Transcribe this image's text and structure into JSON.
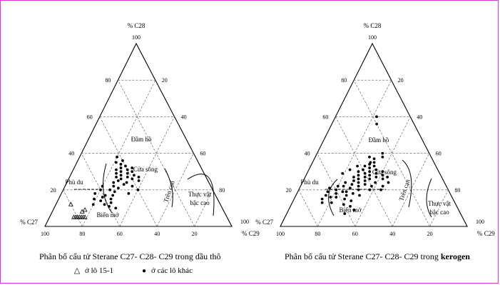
{
  "legend": {
    "triangle_symbol": "△",
    "triangle_label": "ở lô 15-1",
    "dot_symbol": "●",
    "dot_label": "ở các lô khác"
  },
  "chart_data": [
    {
      "type": "scatter",
      "subtype": "ternary",
      "caption_prefix": "Phân bố cấu tử Sterane",
      "caption_formula": "C27- C28- C29",
      "caption_suffix": "trong",
      "caption_material": "dầu thô",
      "axes": {
        "top": {
          "label": "% C28",
          "max": "100",
          "ticks": [
            "20",
            "40",
            "60",
            "80"
          ]
        },
        "left_side_ticks": [
          "20",
          "40",
          "60",
          "80"
        ],
        "right_side_ticks": [
          "20",
          "40",
          "60",
          "80"
        ],
        "bottom_ticks": [
          "100",
          "80",
          "60",
          "40",
          "20"
        ],
        "bottom_left": {
          "label": "% C27",
          "max": "100"
        },
        "bottom_right": {
          "label": "% C29",
          "max": "100"
        }
      },
      "regions": [
        "Phù du",
        "Đầm hồ",
        "Cửa sông",
        "Trên cạn",
        "Thực vật bậc cao",
        "Biển mở"
      ],
      "series": [
        {
          "marker": "triangle",
          "points": [
            [
              5,
              82,
              13
            ],
            [
              5,
              81,
              14
            ],
            [
              5,
              80,
              15
            ],
            [
              5,
              79,
              16
            ],
            [
              5,
              78,
              17
            ],
            [
              5,
              77,
              18
            ],
            [
              5,
              76,
              19
            ],
            [
              8,
              76,
              16
            ],
            [
              9,
              74,
              17
            ],
            [
              12,
              80,
              8
            ]
          ]
        },
        {
          "marker": "dot",
          "points": [
            [
              12,
              68,
              20
            ],
            [
              15,
              66,
              19
            ],
            [
              18,
              64,
              18
            ],
            [
              12,
              62,
              26
            ],
            [
              14,
              63,
              23
            ],
            [
              16,
              61,
              23
            ],
            [
              17,
              59,
              24
            ],
            [
              20,
              60,
              20
            ],
            [
              22,
              58,
              20
            ],
            [
              11,
              60,
              29
            ],
            [
              13,
              58,
              29
            ],
            [
              15,
              57,
              28
            ],
            [
              10,
              57,
              33
            ],
            [
              17,
              55,
              28
            ],
            [
              20,
              55,
              25
            ],
            [
              19,
              53,
              28
            ],
            [
              22,
              52,
              26
            ],
            [
              24,
              51,
              25
            ],
            [
              21,
              50,
              29
            ],
            [
              25,
              48,
              27
            ],
            [
              27,
              48,
              25
            ],
            [
              29,
              47,
              24
            ],
            [
              31,
              46,
              23
            ],
            [
              26,
              46,
              28
            ],
            [
              28,
              45,
              27
            ],
            [
              30,
              44,
              26
            ],
            [
              32,
              43,
              25
            ],
            [
              24,
              44,
              32
            ],
            [
              27,
              42,
              31
            ],
            [
              29,
              41,
              30
            ],
            [
              31,
              40,
              29
            ],
            [
              33,
              40,
              27
            ],
            [
              26,
              40,
              34
            ],
            [
              34,
              42,
              24
            ],
            [
              35,
              44,
              21
            ],
            [
              22,
              42,
              36
            ],
            [
              18,
              46,
              36
            ],
            [
              28,
              38,
              34
            ],
            [
              30,
              38,
              32
            ],
            [
              32,
              37,
              31
            ],
            [
              36,
              40,
              24
            ],
            [
              38,
              42,
              20
            ],
            [
              25,
              37,
              38
            ],
            [
              27,
              36,
              37
            ],
            [
              20,
              40,
              40
            ],
            [
              23,
              46,
              31
            ]
          ]
        }
      ]
    },
    {
      "type": "scatter",
      "subtype": "ternary",
      "caption_prefix": "Phân bố cấu tử Sterane",
      "caption_formula": "C27- C28- C29",
      "caption_suffix": "trong",
      "caption_material": "kerogen",
      "axes": {
        "top": {
          "label": "% C28",
          "max": "100",
          "ticks": [
            "20",
            "40",
            "60",
            "80"
          ]
        },
        "left_side_ticks": [
          "20",
          "40",
          "60",
          "80"
        ],
        "right_side_ticks": [
          "20",
          "40",
          "60",
          "80"
        ],
        "bottom_ticks": [
          "100",
          "80",
          "60",
          "40",
          "20"
        ],
        "bottom_left": {
          "label": "% C27",
          "max": "100"
        },
        "bottom_right": {
          "label": "% C29",
          "max": "100"
        }
      },
      "regions": [
        "Phù du",
        "Đầm hồ",
        "Cửa sông",
        "Trên cạn",
        "Thực vật bậc cao",
        "Biển mở"
      ],
      "series": [
        {
          "marker": "dot",
          "points": [
            [
              60,
              18,
              22
            ],
            [
              56,
              20,
              24
            ],
            [
              40,
              25,
              35
            ],
            [
              38,
              26,
              36
            ],
            [
              15,
              70,
              15
            ],
            [
              17,
              67,
              16
            ],
            [
              19,
              65,
              16
            ],
            [
              21,
              63,
              16
            ],
            [
              13,
              66,
              21
            ],
            [
              16,
              62,
              22
            ],
            [
              18,
              61,
              21
            ],
            [
              20,
              60,
              20
            ],
            [
              22,
              58,
              20
            ],
            [
              12,
              60,
              28
            ],
            [
              15,
              58,
              27
            ],
            [
              17,
              56,
              27
            ],
            [
              19,
              55,
              26
            ],
            [
              14,
              55,
              31
            ],
            [
              18,
              52,
              30
            ],
            [
              21,
              52,
              27
            ],
            [
              23,
              50,
              27
            ],
            [
              17,
              49,
              34
            ],
            [
              20,
              48,
              32
            ],
            [
              22,
              47,
              31
            ],
            [
              25,
              48,
              27
            ],
            [
              24,
              46,
              30
            ],
            [
              26,
              45,
              29
            ],
            [
              28,
              44,
              28
            ],
            [
              30,
              43,
              27
            ],
            [
              23,
              43,
              34
            ],
            [
              25,
              42,
              33
            ],
            [
              27,
              41,
              32
            ],
            [
              29,
              40,
              31
            ],
            [
              31,
              40,
              29
            ],
            [
              33,
              38,
              29
            ],
            [
              26,
              39,
              35
            ],
            [
              28,
              38,
              34
            ],
            [
              30,
              37,
              33
            ],
            [
              32,
              36,
              32
            ],
            [
              34,
              35,
              31
            ],
            [
              22,
              40,
              38
            ],
            [
              24,
              37,
              39
            ],
            [
              27,
              35,
              38
            ],
            [
              29,
              34,
              37
            ],
            [
              31,
              33,
              36
            ],
            [
              33,
              33,
              34
            ],
            [
              35,
              34,
              31
            ],
            [
              37,
              31,
              32
            ],
            [
              26,
              32,
              42
            ],
            [
              28,
              31,
              41
            ],
            [
              30,
              30,
              40
            ],
            [
              24,
              30,
              46
            ],
            [
              27,
              29,
              44
            ],
            [
              20,
              36,
              44
            ],
            [
              22,
              34,
              44
            ],
            [
              35,
              32,
              33
            ],
            [
              38,
              33,
              29
            ],
            [
              20,
              42,
              38
            ],
            [
              19,
              57,
              24
            ],
            [
              24,
              53,
              23
            ],
            [
              9,
              56,
              35
            ],
            [
              7,
              62,
              31
            ],
            [
              13,
              71,
              16
            ],
            [
              31,
              47,
              22
            ],
            [
              29,
              52,
              19
            ],
            [
              16,
              65,
              19
            ],
            [
              11,
              57,
              32
            ],
            [
              22,
              55,
              23
            ],
            [
              27,
              47,
              26
            ],
            [
              33,
              42,
              25
            ]
          ]
        }
      ]
    }
  ]
}
